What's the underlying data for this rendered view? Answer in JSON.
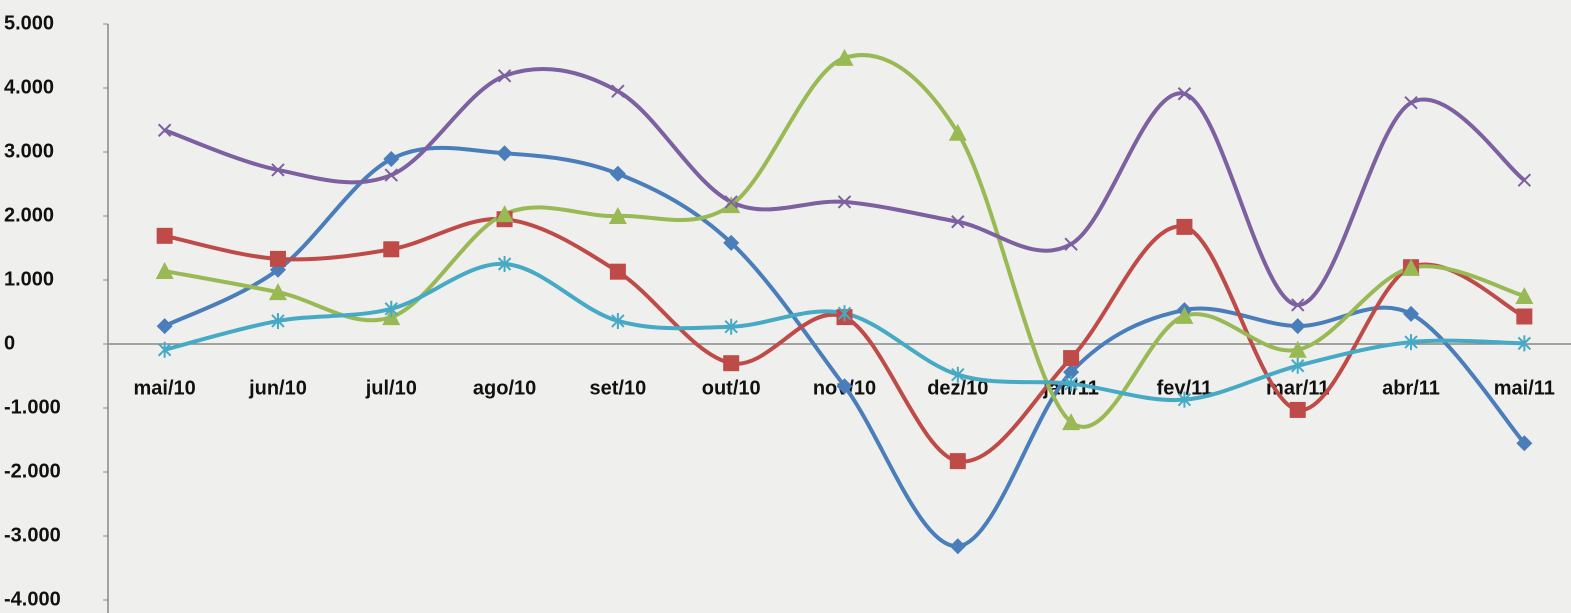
{
  "chart_data": {
    "type": "line",
    "categories": [
      "mai/10",
      "jun/10",
      "jul/10",
      "ago/10",
      "set/10",
      "out/10",
      "nov/10",
      "dez/10",
      "jan/11",
      "fev/11",
      "mar/11",
      "abr/11",
      "mai/11"
    ],
    "series": [
      {
        "color": "#4a7ebb",
        "marker": "diamond",
        "values": [
          280,
          1160,
          2890,
          2980,
          2660,
          1580,
          -660,
          -3160,
          -440,
          530,
          280,
          470,
          -1550
        ]
      },
      {
        "color": "#be4b48",
        "marker": "square",
        "values": [
          1690,
          1330,
          1480,
          1950,
          1130,
          -300,
          420,
          -1830,
          -220,
          1830,
          -1030,
          1200,
          430
        ]
      },
      {
        "color": "#98b954",
        "marker": "triangle",
        "values": [
          1140,
          810,
          420,
          2030,
          2000,
          2170,
          4470,
          3300,
          -1220,
          440,
          -90,
          1190,
          750
        ]
      },
      {
        "color": "#7d60a0",
        "marker": "x",
        "values": [
          3340,
          2720,
          2640,
          4190,
          3950,
          2220,
          2220,
          1910,
          1560,
          3910,
          610,
          3770,
          2560
        ]
      },
      {
        "color": "#46aac5",
        "marker": "star",
        "values": [
          -90,
          360,
          550,
          1250,
          360,
          270,
          480,
          -480,
          -620,
          -870,
          -340,
          30,
          10
        ]
      }
    ],
    "ylim": [
      -4000,
      5000
    ],
    "yticks": [
      {
        "value": -4000,
        "label": "-4.000"
      },
      {
        "value": -3000,
        "label": "-3.000"
      },
      {
        "value": -2000,
        "label": "-2.000"
      },
      {
        "value": -1000,
        "label": "-1.000"
      },
      0,
      {
        "value": 1000,
        "label": "1.000"
      },
      {
        "value": 2000,
        "label": "2.000"
      },
      {
        "value": 3000,
        "label": "3.000"
      },
      {
        "value": 4000,
        "label": "4.000"
      },
      {
        "value": 5000,
        "label": "5.000"
      }
    ],
    "smooth": true,
    "grid": false
  }
}
